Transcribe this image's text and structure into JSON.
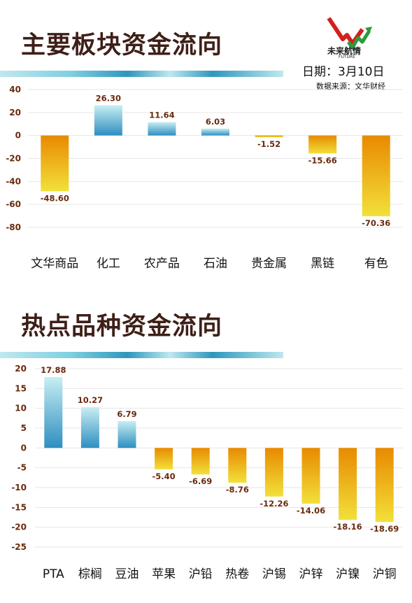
{
  "header": {
    "date_label": "日期：3月10日",
    "source_label": "数据来源：文华财经",
    "logo_text": "未来航情",
    "logo_subtext": "FUTURE"
  },
  "colors": {
    "positive_top": "#c8eef3",
    "positive_bottom": "#2e8ec0",
    "negative_top": "#e88a00",
    "negative_bottom": "#f2e03a",
    "title": "#3e1f17",
    "label": "#6a2a0e",
    "stripe_dark": "#2e97bd",
    "stripe_light": "#bfe8ef"
  },
  "chart_data": [
    {
      "type": "bar",
      "title": "主要板块资金流向",
      "categories": [
        "文华商品",
        "化工",
        "农产品",
        "石油",
        "贵金属",
        "黑链",
        "有色"
      ],
      "values": [
        -48.6,
        26.3,
        11.64,
        6.03,
        -1.52,
        -15.66,
        -70.36
      ],
      "value_labels": [
        "-48.60",
        "26.30",
        "11.64",
        "6.03",
        "-1.52",
        "-15.66",
        "-70.36"
      ],
      "yticks": [
        40,
        20,
        0,
        -20,
        -40,
        -60,
        -80
      ],
      "ylim": [
        -80,
        40
      ],
      "grid": true
    },
    {
      "type": "bar",
      "title": "热点品种资金流向",
      "categories": [
        "PTA",
        "棕榈",
        "豆油",
        "苹果",
        "沪铅",
        "热卷",
        "沪锡",
        "沪锌",
        "沪镍",
        "沪铜"
      ],
      "values": [
        17.88,
        10.27,
        6.79,
        -5.4,
        -6.69,
        -8.76,
        -12.26,
        -14.06,
        -18.16,
        -18.69
      ],
      "value_labels": [
        "17.88",
        "10.27",
        "6.79",
        "-5.40",
        "-6.69",
        "-8.76",
        "-12.26",
        "-14.06",
        "-18.16",
        "-18.69"
      ],
      "yticks": [
        20,
        15,
        10,
        5,
        0,
        -5,
        -10,
        -15,
        -20,
        -25
      ],
      "ylim": [
        -25,
        20
      ],
      "grid": true
    }
  ]
}
